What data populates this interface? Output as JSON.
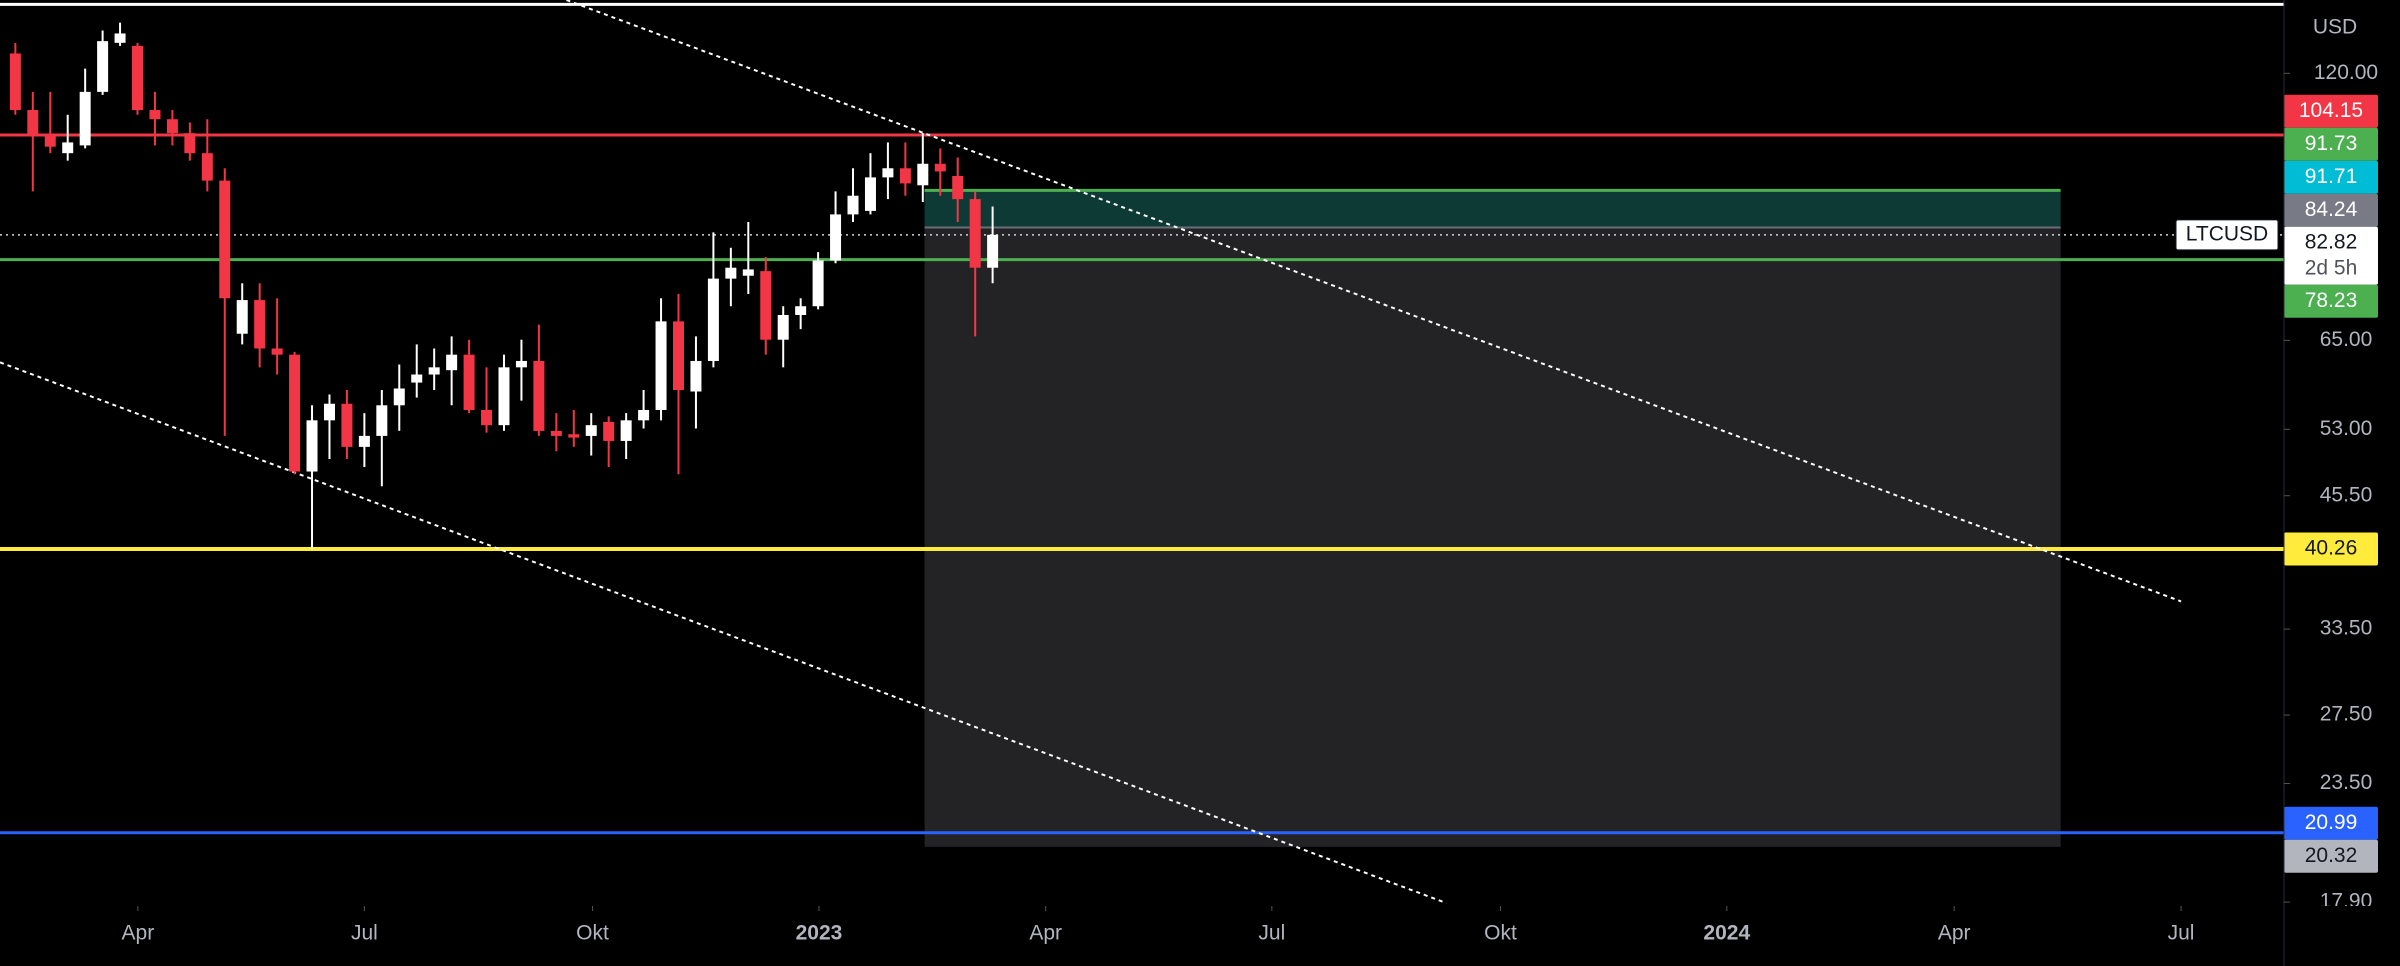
{
  "chart_data": {
    "type": "candlestick",
    "symbol": "LTCUSD",
    "currency": "USD",
    "countdown": "2d 5h",
    "log_scale": true,
    "ylim": [
      17.74,
      142.0
    ],
    "yticks": [
      {
        "value": 120,
        "label": "120.00"
      },
      {
        "value": 65,
        "label": "65.00"
      },
      {
        "value": 53,
        "label": "53.00"
      },
      {
        "value": 45.5,
        "label": "45.50"
      },
      {
        "value": 33.5,
        "label": "33.50"
      },
      {
        "value": 27.5,
        "label": "27.50"
      },
      {
        "value": 23.5,
        "label": "23.50"
      },
      {
        "value": 17.9,
        "label": "17.90"
      }
    ],
    "xlim": [
      -0.88,
      130.0
    ],
    "xticks": [
      {
        "value": 7.02,
        "label": "Apr"
      },
      {
        "value": 20.0,
        "label": "Jul"
      },
      {
        "value": 33.07,
        "label": "Okt"
      },
      {
        "value": 46.05,
        "label": "2023",
        "bold": true
      },
      {
        "value": 59.04,
        "label": "Apr"
      },
      {
        "value": 72.0,
        "label": "Jul"
      },
      {
        "value": 85.1,
        "label": "Okt"
      },
      {
        "value": 98.07,
        "label": "2024",
        "bold": true
      },
      {
        "value": 111.1,
        "label": "Apr"
      },
      {
        "value": 124.1,
        "label": "Jul"
      }
    ],
    "up_color": "#ffffff",
    "down_color": "#f23645",
    "open": [
      125.6,
      110.3,
      104.3,
      99.9,
      101.7,
      115.0,
      128.7,
      127.8,
      110.3,
      108.0,
      104.6,
      99.9,
      93.8,
      66.0,
      71.3,
      63.8,
      62.9,
      48.1,
      54.1,
      56.2,
      50.9,
      52.2,
      56.0,
      59.0,
      60.1,
      60.7,
      62.9,
      55.4,
      53.5,
      61.1,
      62.0,
      52.8,
      52.4,
      52.2,
      53.9,
      51.6,
      54.1,
      55.4,
      67.9,
      57.8,
      62.0,
      74.9,
      75.4,
      76.2,
      65.1,
      68.9,
      70.3,
      78.1,
      86.8,
      87.5,
      94.5,
      96.5,
      92.8,
      97.5,
      94.8,
      89.9,
      76.8
    ],
    "high": [
      128.7,
      115.0,
      115.0,
      109.1,
      121.3,
      132.4,
      134.8,
      128.7,
      115.0,
      110.3,
      107.2,
      108.0,
      96.5,
      74.1,
      74.1,
      71.6,
      63.3,
      56.0,
      57.4,
      58.0,
      55.0,
      58.0,
      61.5,
      64.4,
      63.8,
      65.6,
      65.1,
      61.1,
      62.9,
      65.1,
      67.4,
      55.0,
      55.4,
      55.0,
      54.6,
      55.0,
      58.0,
      71.6,
      72.3,
      65.6,
      83.3,
      80.4,
      85.3,
      78.7,
      70.3,
      71.6,
      79.6,
      91.5,
      96.5,
      99.9,
      102.4,
      102.4,
      104.6,
      101.0,
      98.9,
      91.5,
      88.4
    ],
    "low": [
      109.1,
      91.5,
      99.9,
      98.2,
      101.0,
      114.2,
      127.8,
      109.1,
      101.7,
      101.7,
      98.2,
      91.5,
      52.2,
      64.4,
      61.1,
      60.1,
      47.8,
      40.3,
      49.5,
      49.5,
      48.6,
      46.5,
      52.8,
      57.0,
      58.0,
      56.0,
      55.0,
      52.6,
      52.8,
      56.6,
      52.2,
      50.4,
      50.9,
      49.9,
      48.6,
      49.5,
      53.1,
      54.1,
      47.8,
      53.1,
      61.1,
      70.3,
      72.3,
      62.9,
      61.1,
      66.7,
      69.8,
      77.6,
      85.3,
      86.8,
      89.9,
      90.6,
      89.3,
      90.6,
      85.3,
      65.6,
      74.1
    ],
    "close": [
      110.3,
      104.3,
      101.4,
      102.4,
      115.0,
      129.2,
      131.5,
      110.3,
      108.0,
      104.6,
      99.9,
      93.8,
      71.6,
      71.3,
      63.8,
      62.9,
      48.1,
      54.1,
      56.2,
      50.9,
      52.2,
      56.0,
      58.2,
      60.1,
      61.1,
      62.9,
      55.4,
      53.5,
      61.1,
      62.0,
      52.8,
      52.2,
      52.0,
      53.5,
      51.6,
      54.1,
      55.4,
      67.9,
      58.0,
      62.0,
      74.9,
      76.8,
      76.5,
      65.1,
      68.9,
      70.3,
      78.1,
      86.8,
      90.6,
      94.5,
      96.5,
      93.2,
      97.5,
      95.8,
      89.9,
      76.8,
      82.82
    ],
    "hlines": [
      {
        "value": 140.6,
        "color": "#ffffff",
        "width": 3
      },
      {
        "value": 104.15,
        "color": "#f23645",
        "width": 3
      },
      {
        "value": 78.23,
        "color": "#4caf50",
        "width": 3
      },
      {
        "value": 40.26,
        "color": "#ffeb3b",
        "width": 4
      },
      {
        "value": 20.99,
        "color": "#2962ff",
        "width": 3
      },
      {
        "value": 82.82,
        "color": "#d1d4dc",
        "width": 1.5,
        "dotted": true
      }
    ],
    "trendlines": [
      {
        "x": [
          31.58,
          124.1
        ],
        "y": [
          142.0,
          35.7
        ],
        "color": "#ffffff"
      },
      {
        "x": [
          -0.88,
          82.0
        ],
        "y": [
          61.8,
          17.86
        ],
        "color": "#ffffff"
      }
    ],
    "position": {
      "x": [
        52.1,
        117.2
      ],
      "target": 91.73,
      "entry": 84.24,
      "stop": 20.32,
      "profit_color": "#0d3a34",
      "loss_color": "#232326",
      "target_color": "#4caf50",
      "entry_color": "#6a6d78"
    },
    "price_tags": [
      {
        "value": 104.15,
        "color": "#f23645",
        "text_color": "#ffffff"
      },
      {
        "value": 91.73,
        "color": "#4caf50",
        "text_color": "#ffffff"
      },
      {
        "value": 91.71,
        "color": "#00bcd4",
        "text_color": "#ffffff"
      },
      {
        "value": 84.24,
        "color": "#787b86",
        "text_color": "#ffffff"
      },
      {
        "value": 82.82,
        "color": "#ffffff",
        "text_color": "#131722",
        "current": true
      },
      {
        "value": 78.23,
        "color": "#4caf50",
        "text_color": "#ffffff"
      },
      {
        "value": 40.26,
        "color": "#ffeb3b",
        "text_color": "#131722"
      },
      {
        "value": 20.99,
        "color": "#2962ff",
        "text_color": "#ffffff"
      },
      {
        "value": 20.32,
        "color": "#b2b5be",
        "text_color": "#131722"
      }
    ]
  }
}
